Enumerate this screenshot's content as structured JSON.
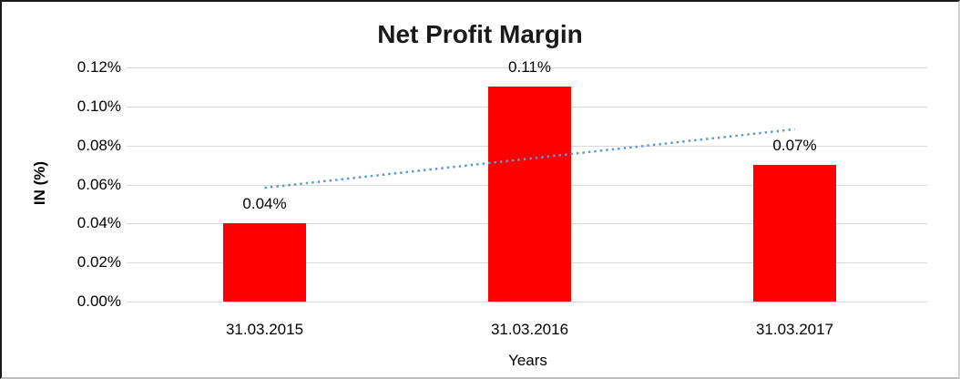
{
  "window": {
    "background": "#ffffff",
    "border_dark": "#1a1a1a",
    "border_light": "#cfcfcf"
  },
  "chart_data": {
    "type": "bar",
    "title": "Net Profit Margin",
    "xlabel": "Years",
    "ylabel": "IN (%)",
    "categories": [
      "31.03.2015",
      "31.03.2016",
      "31.03.2017"
    ],
    "values": [
      0.04,
      0.11,
      0.07
    ],
    "data_labels": [
      "0.04%",
      "0.11%",
      "0.07%"
    ],
    "y_tick_values": [
      0.0,
      0.02,
      0.04,
      0.06,
      0.08,
      0.1,
      0.12
    ],
    "y_tick_labels": [
      "0.00%",
      "0.02%",
      "0.04%",
      "0.06%",
      "0.08%",
      "0.10%",
      "0.12%"
    ],
    "ylim": [
      0,
      0.12
    ],
    "grid": true,
    "legend": "none",
    "bar_color": "#ff0000",
    "gridline_color": "#d9d9d9",
    "text_color": "#000000",
    "trendline": {
      "type": "linear",
      "style": "dotted",
      "color": "#5b9bd5",
      "start_value": 0.0583,
      "end_value": 0.0883
    }
  }
}
